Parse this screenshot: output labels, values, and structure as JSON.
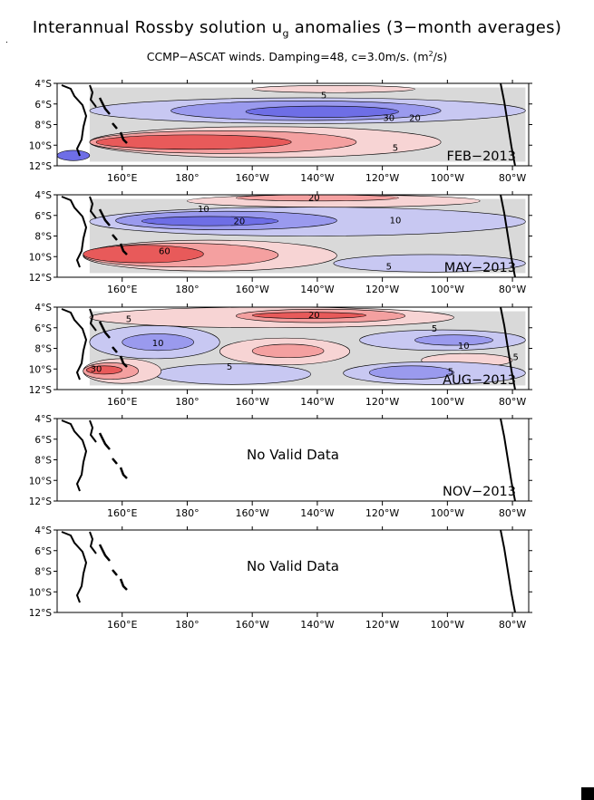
{
  "title_main": "Interannual Rossby solution u",
  "title_sub": "g",
  "title_tail": " anomalies (3−month averages)",
  "subtitle_main": "CCMP−ASCAT winds. Damping=48, c=3.0m/s. (m",
  "subtitle_sup": "2",
  "subtitle_tail": "/s)",
  "colors": {
    "positive_strong": "#e85a5a",
    "positive_mid": "#f4a0a0",
    "positive_light": "#f7d4d4",
    "neutral": "#d9d9d9",
    "negative_light": "#c8c8f2",
    "negative_mid": "#9a9aee",
    "negative_strong": "#6e6ee6",
    "coast": "#000000"
  },
  "chart_data": [
    {
      "type": "heatmap",
      "panel_label": "FEB−2013",
      "has_data": true,
      "x_ticks": [
        "160°E",
        "180°",
        "160°W",
        "140°W",
        "120°W",
        "100°W",
        "80°W"
      ],
      "y_ticks": [
        "4°S",
        "6°S",
        "8°S",
        "10°S",
        "12°S"
      ],
      "xlim": [
        140,
        285
      ],
      "ylim": [
        -12,
        -4
      ],
      "contour_labels": [
        {
          "text": "5",
          "lon": 222,
          "lat": -5.2
        },
        {
          "text": "30",
          "lon": 242,
          "lat": -7.4
        },
        {
          "text": "20",
          "lon": 250,
          "lat": -7.4
        },
        {
          "text": "5",
          "lon": 244,
          "lat": -10.3
        }
      ],
      "fields": [
        {
          "level": "negative_light",
          "lon": [
            150,
            284
          ],
          "lat": [
            -5.4,
            -7.9
          ]
        },
        {
          "level": "negative_mid",
          "lon": [
            175,
            258
          ],
          "lat": [
            -5.7,
            -7.6
          ]
        },
        {
          "level": "negative_strong",
          "lon": [
            198,
            245
          ],
          "lat": [
            -6.2,
            -7.3
          ]
        },
        {
          "level": "positive_light",
          "lon": [
            200,
            250
          ],
          "lat": [
            -4.2,
            -4.9
          ]
        },
        {
          "level": "positive_light",
          "lon": [
            150,
            258
          ],
          "lat": [
            -8.2,
            -11.2
          ]
        },
        {
          "level": "positive_mid",
          "lon": [
            150,
            232
          ],
          "lat": [
            -8.6,
            -10.8
          ]
        },
        {
          "level": "positive_strong",
          "lon": [
            152,
            212
          ],
          "lat": [
            -9.0,
            -10.4
          ]
        },
        {
          "level": "negative_strong",
          "lon": [
            140,
            150
          ],
          "lat": [
            -10.5,
            -11.5
          ]
        }
      ]
    },
    {
      "type": "heatmap",
      "panel_label": "MAY−2013",
      "has_data": true,
      "x_ticks": [
        "160°E",
        "180°",
        "160°W",
        "140°W",
        "120°W",
        "100°W",
        "80°W"
      ],
      "y_ticks": [
        "4°S",
        "6°S",
        "8°S",
        "10°S",
        "12°S"
      ],
      "xlim": [
        140,
        285
      ],
      "ylim": [
        -12,
        -4
      ],
      "contour_labels": [
        {
          "text": "20",
          "lon": 219,
          "lat": -4.3
        },
        {
          "text": "10",
          "lon": 185,
          "lat": -5.4
        },
        {
          "text": "20",
          "lon": 196,
          "lat": -6.6
        },
        {
          "text": "10",
          "lon": 244,
          "lat": -6.5
        },
        {
          "text": "60",
          "lon": 173,
          "lat": -9.5
        },
        {
          "text": "5",
          "lon": 242,
          "lat": -11.0
        }
      ],
      "fields": [
        {
          "level": "positive_light",
          "lon": [
            180,
            270
          ],
          "lat": [
            -4.0,
            -5.2
          ]
        },
        {
          "level": "positive_mid",
          "lon": [
            195,
            245
          ],
          "lat": [
            -4.0,
            -4.6
          ]
        },
        {
          "level": "negative_light",
          "lon": [
            150,
            284
          ],
          "lat": [
            -5.2,
            -8.0
          ]
        },
        {
          "level": "negative_mid",
          "lon": [
            158,
            226
          ],
          "lat": [
            -5.6,
            -7.4
          ]
        },
        {
          "level": "negative_strong",
          "lon": [
            166,
            208
          ],
          "lat": [
            -6.1,
            -7.0
          ]
        },
        {
          "level": "positive_light",
          "lon": [
            148,
            226
          ],
          "lat": [
            -8.4,
            -11.4
          ]
        },
        {
          "level": "positive_mid",
          "lon": [
            148,
            208
          ],
          "lat": [
            -8.7,
            -11.0
          ]
        },
        {
          "level": "positive_strong",
          "lon": [
            148,
            185
          ],
          "lat": [
            -8.9,
            -10.6
          ]
        },
        {
          "level": "negative_light",
          "lon": [
            225,
            284
          ],
          "lat": [
            -9.8,
            -11.5
          ]
        }
      ]
    },
    {
      "type": "heatmap",
      "panel_label": "AUG−2013",
      "has_data": true,
      "x_ticks": [
        "160°E",
        "180°",
        "160°W",
        "140°W",
        "120°W",
        "100°W",
        "80°W"
      ],
      "y_ticks": [
        "4°S",
        "6°S",
        "8°S",
        "10°S",
        "12°S"
      ],
      "xlim": [
        140,
        285
      ],
      "ylim": [
        -12,
        -4
      ],
      "contour_labels": [
        {
          "text": "5",
          "lon": 162,
          "lat": -5.2
        },
        {
          "text": "20",
          "lon": 219,
          "lat": -4.8
        },
        {
          "text": "5",
          "lon": 256,
          "lat": -6.1
        },
        {
          "text": "10",
          "lon": 171,
          "lat": -7.5
        },
        {
          "text": "10",
          "lon": 265,
          "lat": -7.8
        },
        {
          "text": "5",
          "lon": 193,
          "lat": -9.8
        },
        {
          "text": "5",
          "lon": 281,
          "lat": -8.9
        },
        {
          "text": "5",
          "lon": 261,
          "lat": -10.3
        },
        {
          "text": "30",
          "lon": 152,
          "lat": -10.0
        }
      ],
      "fields": [
        {
          "level": "positive_light",
          "lon": [
            150,
            262
          ],
          "lat": [
            -4.0,
            -6.0
          ]
        },
        {
          "level": "positive_mid",
          "lon": [
            195,
            247
          ],
          "lat": [
            -4.2,
            -5.5
          ]
        },
        {
          "level": "positive_strong",
          "lon": [
            200,
            235
          ],
          "lat": [
            -4.5,
            -5.1
          ]
        },
        {
          "level": "negative_light",
          "lon": [
            150,
            190
          ],
          "lat": [
            -5.8,
            -9.0
          ]
        },
        {
          "level": "negative_mid",
          "lon": [
            160,
            182
          ],
          "lat": [
            -6.6,
            -8.2
          ]
        },
        {
          "level": "negative_light",
          "lon": [
            233,
            284
          ],
          "lat": [
            -6.2,
            -8.2
          ]
        },
        {
          "level": "negative_mid",
          "lon": [
            250,
            274
          ],
          "lat": [
            -6.7,
            -7.7
          ]
        },
        {
          "level": "positive_light",
          "lon": [
            190,
            230
          ],
          "lat": [
            -7.0,
            -9.6
          ]
        },
        {
          "level": "positive_mid",
          "lon": [
            200,
            222
          ],
          "lat": [
            -7.6,
            -8.9
          ]
        },
        {
          "level": "positive_light",
          "lon": [
            252,
            280
          ],
          "lat": [
            -8.5,
            -9.8
          ]
        },
        {
          "level": "negative_light",
          "lon": [
            170,
            218
          ],
          "lat": [
            -9.5,
            -11.5
          ]
        },
        {
          "level": "negative_light",
          "lon": [
            228,
            284
          ],
          "lat": [
            -9.3,
            -11.5
          ]
        },
        {
          "level": "negative_mid",
          "lon": [
            236,
            262
          ],
          "lat": [
            -9.7,
            -11.0
          ]
        },
        {
          "level": "positive_light",
          "lon": [
            148,
            172
          ],
          "lat": [
            -9.0,
            -11.4
          ]
        },
        {
          "level": "positive_mid",
          "lon": [
            148,
            165
          ],
          "lat": [
            -9.4,
            -11.0
          ]
        },
        {
          "level": "positive_strong",
          "lon": [
            149,
            160
          ],
          "lat": [
            -9.7,
            -10.5
          ]
        }
      ]
    },
    {
      "type": "heatmap",
      "panel_label": "NOV−2013",
      "has_data": false,
      "no_data_text": "No Valid Data",
      "x_ticks": [
        "160°E",
        "180°",
        "160°W",
        "140°W",
        "120°W",
        "100°W",
        "80°W"
      ],
      "y_ticks": [
        "4°S",
        "6°S",
        "8°S",
        "10°S",
        "12°S"
      ],
      "xlim": [
        140,
        285
      ],
      "ylim": [
        -12,
        -4
      ],
      "contour_labels": [],
      "fields": []
    },
    {
      "type": "heatmap",
      "panel_label": "",
      "has_data": false,
      "no_data_text": "No Valid Data",
      "x_ticks": [
        "160°E",
        "180°",
        "160°W",
        "140°W",
        "120°W",
        "100°W",
        "80°W"
      ],
      "y_ticks": [
        "4°S",
        "6°S",
        "8°S",
        "10°S",
        "12°S"
      ],
      "xlim": [
        140,
        285
      ],
      "ylim": [
        -12,
        -4
      ],
      "contour_labels": [],
      "fields": []
    }
  ]
}
